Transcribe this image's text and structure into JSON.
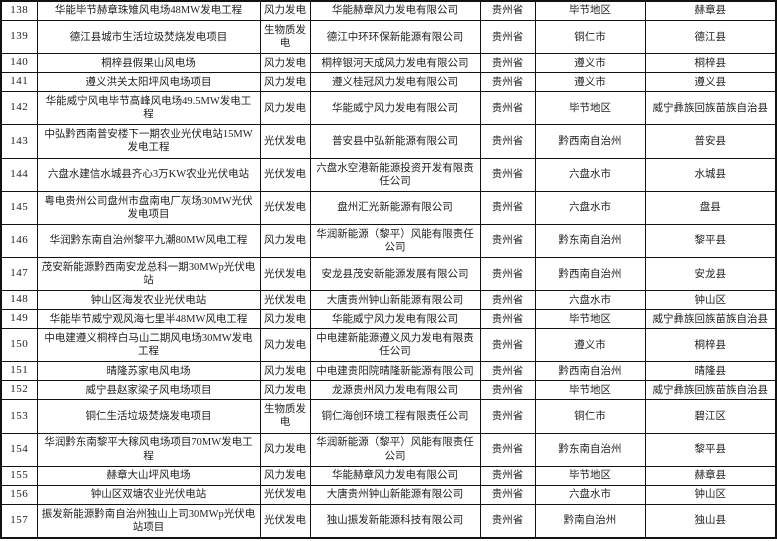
{
  "document": {
    "kind": "project-approval-table",
    "province_label": "贵州省",
    "colors": {
      "background": "#ffffff",
      "border": "#121212",
      "text": "#1f1f1f"
    },
    "row_number_range": {
      "first": 138,
      "last": 157
    }
  },
  "table": {
    "column_keys": [
      "no",
      "project",
      "type",
      "company",
      "province",
      "region",
      "county"
    ],
    "rows": [
      [
        "138",
        "华能毕节赫章珠雉风电场48MW发电工程",
        "风力发电",
        "华能赫章风力发电有限公司",
        "贵州省",
        "毕节地区",
        "赫章县"
      ],
      [
        "139",
        "德江县城市生活垃圾焚烧发电项目",
        "生物质发电",
        "德江中环环保新能源有限公司",
        "贵州省",
        "铜仁市",
        "德江县"
      ],
      [
        "140",
        "桐梓县假果山风电场",
        "风力发电",
        "桐梓银河天成风力发电有限公司",
        "贵州省",
        "遵义市",
        "桐梓县"
      ],
      [
        "141",
        "遵义洪关太阳坪风电场项目",
        "风力发电",
        "遵义桂冠风力发电有限公司",
        "贵州省",
        "遵义市",
        "遵义县"
      ],
      [
        "142",
        "华能威宁风电毕节高峰风电场49.5MW发电工程",
        "风力发电",
        "华能威宁风力发电有限公司",
        "贵州省",
        "毕节地区",
        "威宁彝族回族苗族自治县"
      ],
      [
        "143",
        "中弘黔西南普安楼下一期农业光伏电站15MW发电工程",
        "光伏发电",
        "普安县中弘新能源有限公司",
        "贵州省",
        "黔西南自治州",
        "普安县"
      ],
      [
        "144",
        "六盘水建信水城县齐心3万KW农业光伏电站",
        "光伏发电",
        "六盘水空港新能源投资开发有限责任公司",
        "贵州省",
        "六盘水市",
        "水城县"
      ],
      [
        "145",
        "粤电贵州公司盘州市盘南电厂灰场30MW光伏发电项目",
        "光伏发电",
        "盘州汇光新能源有限公司",
        "贵州省",
        "六盘水市",
        "盘县"
      ],
      [
        "146",
        "华润黔东南自治州黎平九潮80MW风电工程",
        "风力发电",
        "华润新能源（黎平）风能有限责任公司",
        "贵州省",
        "黔东南自治州",
        "黎平县"
      ],
      [
        "147",
        "茂安新能源黔西南安龙总科一期30MWp光伏电站",
        "光伏发电",
        "安龙县茂安新能源发展有限公司",
        "贵州省",
        "黔西南自治州",
        "安龙县"
      ],
      [
        "148",
        "钟山区海发农业光伏电站",
        "光伏发电",
        "大唐贵州钟山新能源有限公司",
        "贵州省",
        "六盘水市",
        "钟山区"
      ],
      [
        "149",
        "华能毕节威宁观风海七里半48MW风电工程",
        "风力发电",
        "华能威宁风力发电有限公司",
        "贵州省",
        "毕节地区",
        "威宁彝族回族苗族自治县"
      ],
      [
        "150",
        "中电建遵义桐梓白马山二期风电场30MW发电工程",
        "风力发电",
        "中电建新能源遵义风力发电有限责任公司",
        "贵州省",
        "遵义市",
        "桐梓县"
      ],
      [
        "151",
        "晴隆苏家电风电场",
        "风力发电",
        "中电建贵阳院晴隆新能源有限公司",
        "贵州省",
        "黔西南自治州",
        "晴隆县"
      ],
      [
        "152",
        "威宁县赵家梁子风电场项目",
        "风力发电",
        "龙源贵州风力发电有限公司",
        "贵州省",
        "毕节地区",
        "威宁彝族回族苗族自治县"
      ],
      [
        "153",
        "铜仁生活垃圾焚烧发电项目",
        "生物质发电",
        "铜仁海创环境工程有限责任公司",
        "贵州省",
        "铜仁市",
        "碧江区"
      ],
      [
        "154",
        "华润黔东南黎平大稼风电场项目70MW发电工程",
        "风力发电",
        "华润新能源（黎平）风能有限责任公司",
        "贵州省",
        "黔东南自治州",
        "黎平县"
      ],
      [
        "155",
        "赫章大山坪风电场",
        "风力发电",
        "华能赫章风力发电有限公司",
        "贵州省",
        "毕节地区",
        "赫章县"
      ],
      [
        "156",
        "钟山区双塘农业光伏电站",
        "光伏发电",
        "大唐贵州钟山新能源有限公司",
        "贵州省",
        "六盘水市",
        "钟山区"
      ],
      [
        "157",
        "振发新能源黔南自治州独山上司30MWp光伏电站项目",
        "光伏发电",
        "独山振发新能源科技有限公司",
        "贵州省",
        "黔南自治州",
        "独山县"
      ]
    ]
  }
}
